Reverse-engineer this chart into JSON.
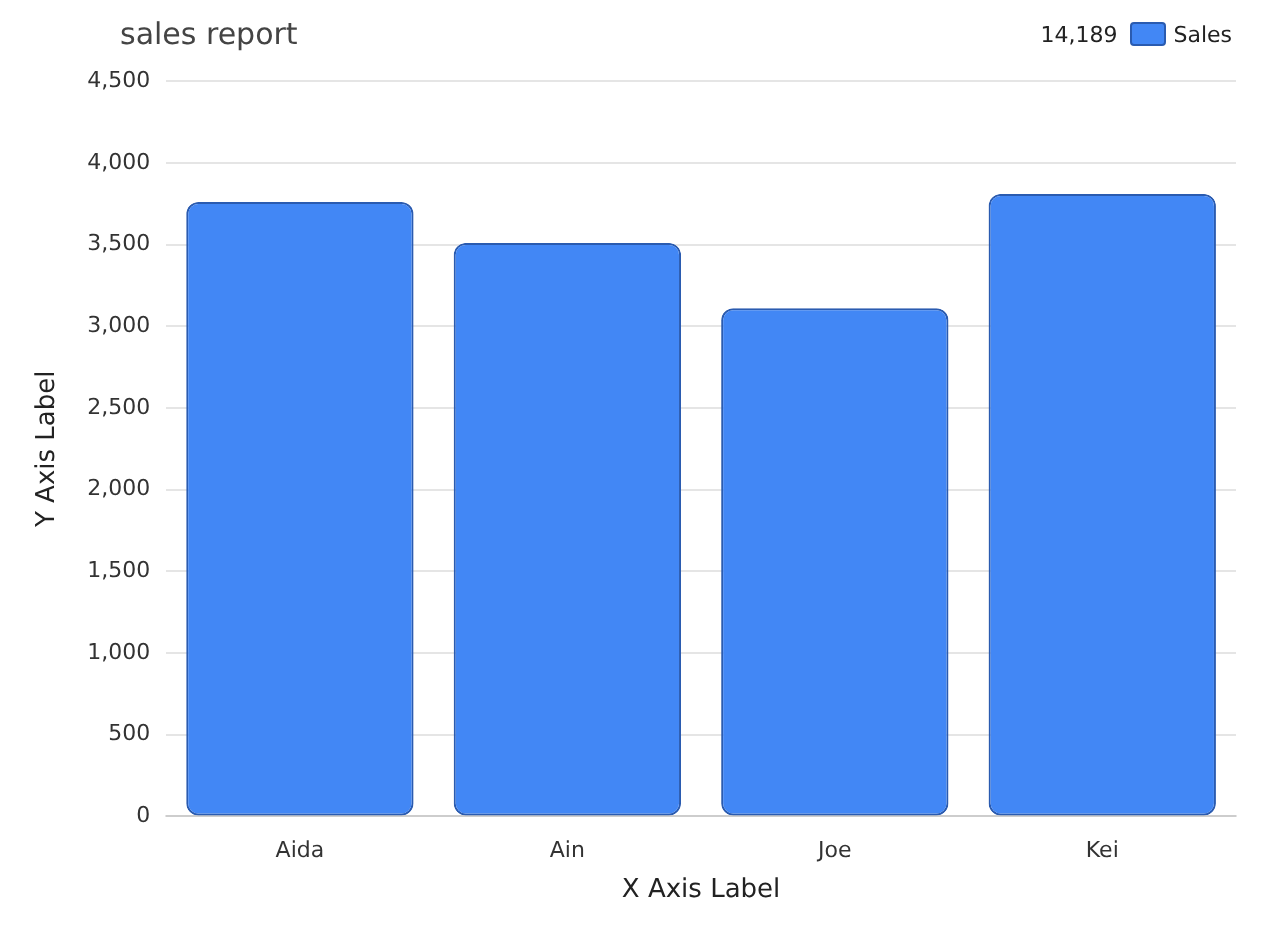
{
  "chart_data": {
    "type": "bar",
    "title": "sales report",
    "xlabel": "X Axis Label",
    "ylabel": "Y Axis Label",
    "categories": [
      "Aida",
      "Ain",
      "Joe",
      "Kei"
    ],
    "series": [
      {
        "name": "Sales",
        "color": "#4287f5",
        "values": [
          3760,
          3510,
          3110,
          3810
        ]
      }
    ],
    "ylim": [
      0,
      4500
    ],
    "yticks": [
      0,
      500,
      {
        "value": 1000,
        "label": "1,000"
      },
      {
        "value": 1500,
        "label": "1,500"
      },
      {
        "value": 2000,
        "label": "2,000"
      },
      {
        "value": 2500,
        "label": "2,500"
      },
      {
        "value": 3000,
        "label": "3,000"
      },
      {
        "value": 3500,
        "label": "3,500"
      },
      {
        "value": 4000,
        "label": "4,000"
      },
      {
        "value": 4500,
        "label": "4,500"
      }
    ],
    "grid": "y",
    "legend": "top right",
    "annotations": [
      "14,189"
    ]
  }
}
